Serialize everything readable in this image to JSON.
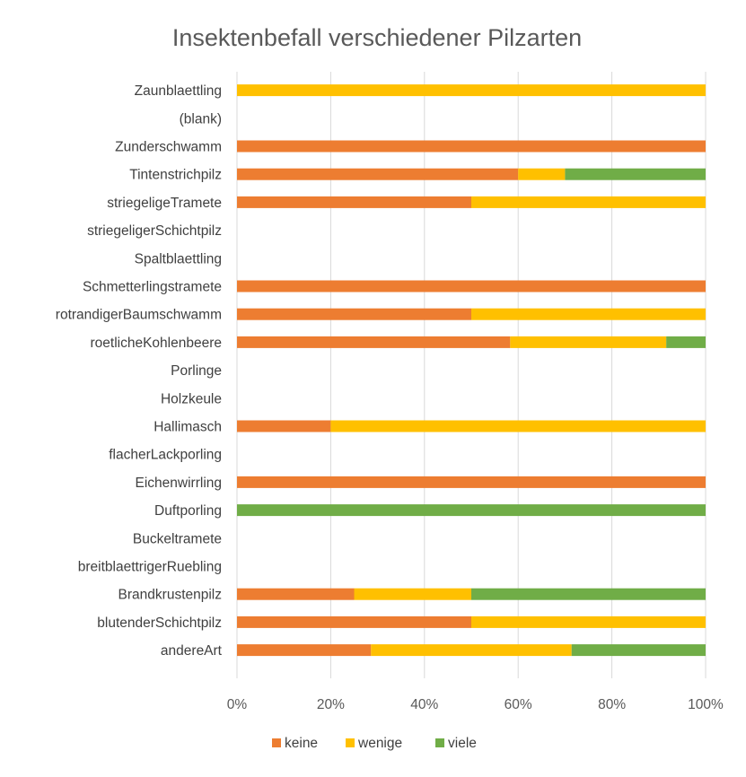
{
  "chart_data": {
    "type": "bar",
    "orientation": "horizontal",
    "stacking": "percent",
    "title": "Insektenbefall verschiedener Pilzarten",
    "xlabel": "",
    "ylabel": "",
    "xlim": [
      0,
      1
    ],
    "x_ticks": [
      "0%",
      "20%",
      "40%",
      "60%",
      "80%",
      "100%"
    ],
    "grid": "vertical",
    "legend_position": "bottom",
    "categories": [
      "Zaunblaettling",
      "(blank)",
      "Zunderschwamm",
      "Tintenstrichpilz",
      "striegeligeTramete",
      "striegeligerSchichtpilz",
      "Spaltblaettling",
      "Schmetterlingstramete",
      "rotrandigerBaumschwamm",
      "roetlicheKohlenbeere",
      "Porlinge",
      "Holzkeule",
      "Hallimasch",
      "flacherLackporling",
      "Eichenwirrling",
      "Duftporling",
      "Buckeltramete",
      "breitblaettrigerRuebling",
      "Brandkrustenpilz",
      "blutenderSchichtpilz",
      "andereArt"
    ],
    "series": [
      {
        "name": "keine",
        "color": "#ED7D31",
        "values": [
          0,
          0,
          1.0,
          0.6,
          0.5,
          0,
          0,
          1.0,
          0.5,
          0.583,
          0,
          0,
          0.2,
          0,
          1.0,
          0,
          0,
          0,
          0.25,
          0.5,
          0.286
        ]
      },
      {
        "name": "wenige",
        "color": "#FFC000",
        "values": [
          1.0,
          0,
          0,
          0.1,
          0.5,
          0,
          0,
          0,
          0.5,
          0.333,
          0,
          0,
          0.8,
          0,
          0,
          0,
          0,
          0,
          0.25,
          0.5,
          0.428
        ]
      },
      {
        "name": "viele",
        "color": "#70AD47",
        "values": [
          0,
          0,
          0,
          0.3,
          0,
          0,
          0,
          0,
          0,
          0.084,
          0,
          0,
          0,
          0,
          0,
          1.0,
          0,
          0,
          0.5,
          0,
          0.286
        ]
      }
    ]
  }
}
